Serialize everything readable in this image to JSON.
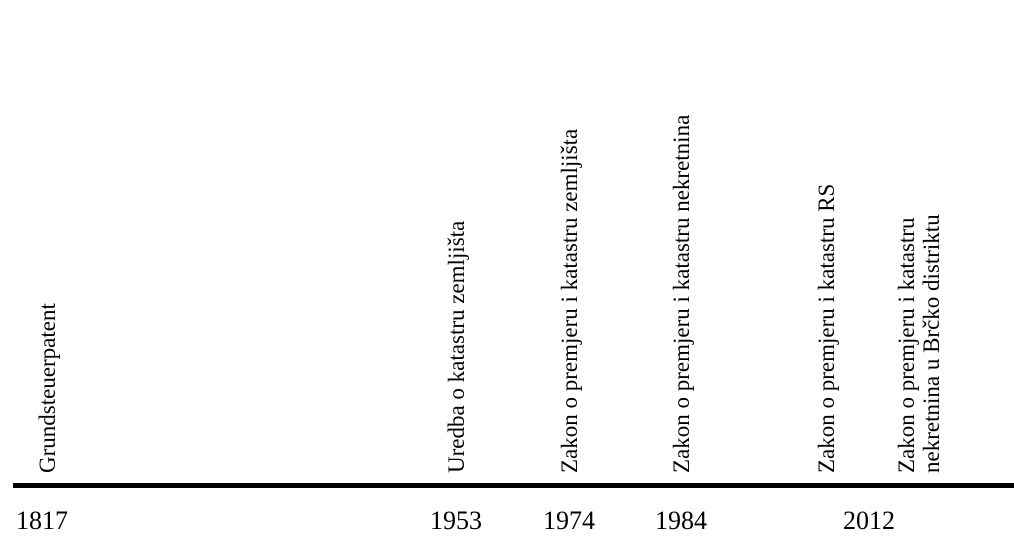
{
  "events": [
    {
      "year": "1817",
      "label": "Grundsteuerpatent"
    },
    {
      "year": "1953",
      "label": "Uredba o katastru zemljišta"
    },
    {
      "year": "1974",
      "label": "Zakon o premjeru i katastru zemljišta"
    },
    {
      "year": "1984",
      "label": "Zakon o premjeru i katastru nekretnina"
    },
    {
      "year": "2012",
      "label": "Zakon o premjeru i katastru RS"
    },
    {
      "year": "2012",
      "label_line1": "Zakon o premjeru i katastru",
      "label_line2": "nekretnina u Brčko distriktu"
    }
  ],
  "year_labels": [
    "1817",
    "1953",
    "1974",
    "1984",
    "2012"
  ]
}
